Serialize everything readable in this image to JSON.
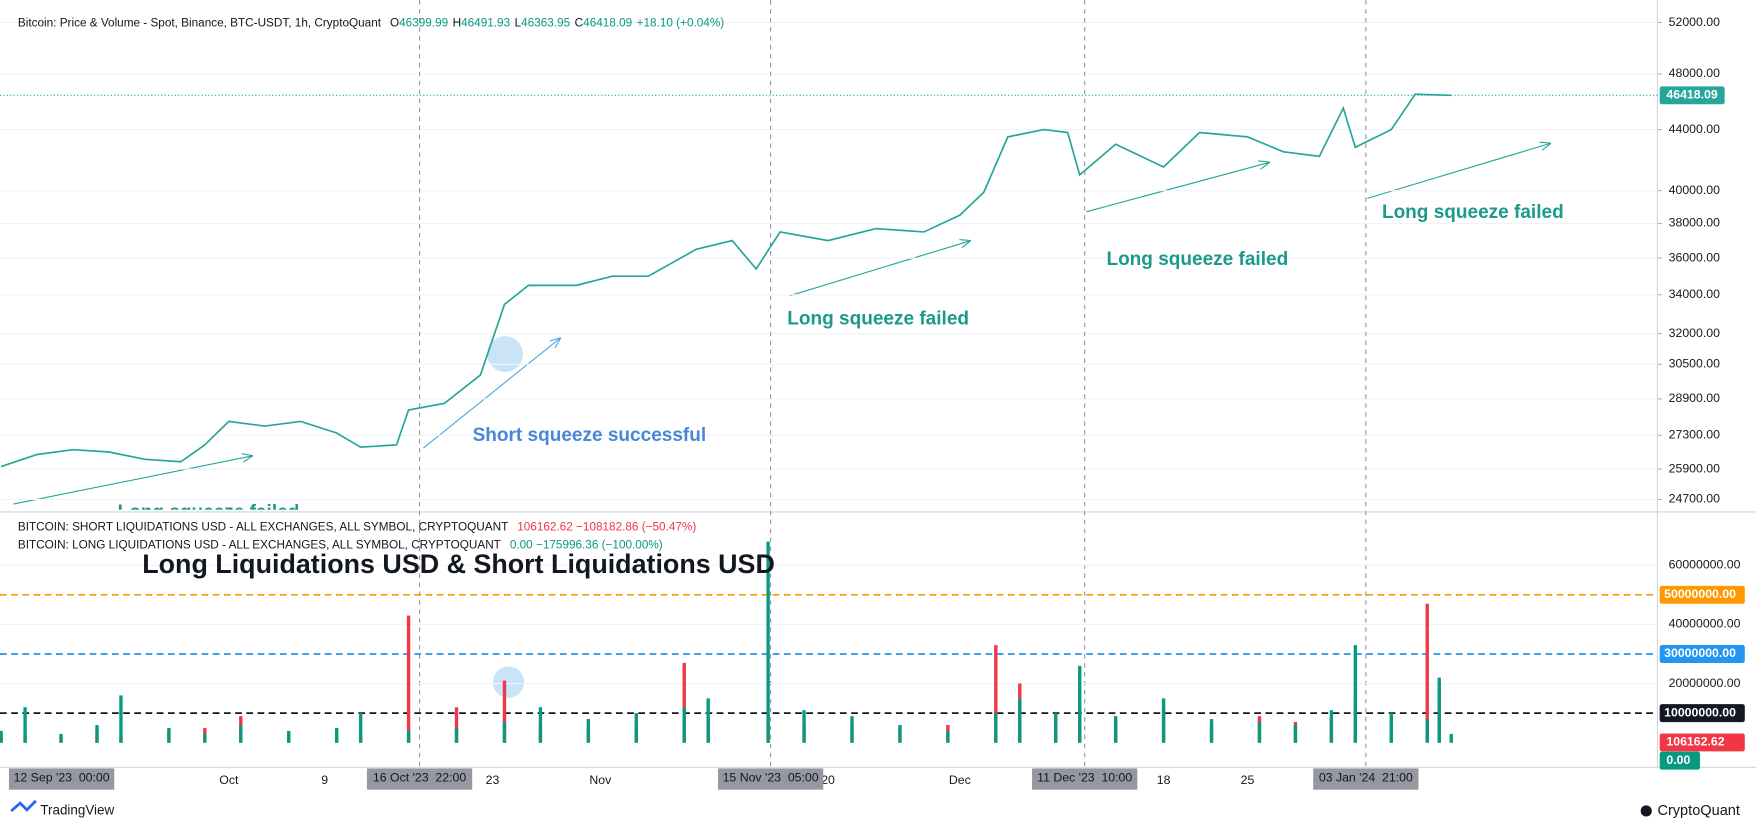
{
  "chart_data": [
    {
      "type": "line",
      "log": true,
      "title": "Bitcoin: Price & Volume - Spot, Binance, BTC-USDT, 1h, CryptoQuant",
      "ohlc": [
        {
          "key": "O",
          "value": "46399.99"
        },
        {
          "key": "H",
          "value": "46491.93"
        },
        {
          "key": "L",
          "value": "46363.95"
        },
        {
          "key": "C",
          "value": "46418.09"
        }
      ],
      "change": "+18.10 (+0.04%)",
      "x": [
        "2023-09-12",
        "2023-09-15",
        "2023-09-18",
        "2023-09-21",
        "2023-09-24",
        "2023-09-27",
        "2023-09-29",
        "2023-10-01",
        "2023-10-04",
        "2023-10-07",
        "2023-10-10",
        "2023-10-12",
        "2023-10-15",
        "2023-10-16",
        "2023-10-19",
        "2023-10-22",
        "2023-10-24",
        "2023-10-26",
        "2023-10-30",
        "2023-11-02",
        "2023-11-05",
        "2023-11-09",
        "2023-11-12",
        "2023-11-14",
        "2023-11-16",
        "2023-11-20",
        "2023-11-24",
        "2023-11-28",
        "2023-12-01",
        "2023-12-03",
        "2023-12-05",
        "2023-12-08",
        "2023-12-10",
        "2023-12-11",
        "2023-12-14",
        "2023-12-18",
        "2023-12-21",
        "2023-12-25",
        "2023-12-28",
        "2023-12-31",
        "2024-01-02",
        "2024-01-03",
        "2024-01-06",
        "2024-01-08",
        "2024-01-11"
      ],
      "values": [
        26000,
        26500,
        26700,
        26600,
        26300,
        26200,
        26900,
        27900,
        27700,
        27900,
        27400,
        26800,
        26900,
        28400,
        28700,
        30000,
        33500,
        34500,
        34500,
        35000,
        35000,
        36500,
        37000,
        35400,
        37500,
        37000,
        37700,
        37500,
        38500,
        39900,
        43500,
        44000,
        43800,
        41000,
        43000,
        41500,
        43800,
        43500,
        42500,
        42200,
        45500,
        42800,
        44000,
        46500,
        46418
      ],
      "color": "#26a69a",
      "last_price": 46418.09,
      "xlim": [
        "2023-09-12T00:00",
        "2024-01-28T05:00"
      ],
      "ylim": [
        24310,
        53850
      ],
      "yticks": [
        {
          "value": 52000,
          "label": "52000.00"
        },
        {
          "value": 48000,
          "label": "48000.00"
        },
        {
          "value": 44000,
          "label": "44000.00"
        },
        {
          "value": 40000,
          "label": "40000.00"
        },
        {
          "value": 38000,
          "label": "38000.00"
        },
        {
          "value": 36000,
          "label": "36000.00"
        },
        {
          "value": 34000,
          "label": "34000.00"
        },
        {
          "value": 32000,
          "label": "32000.00"
        },
        {
          "value": 30500,
          "label": "30500.00"
        },
        {
          "value": 28900,
          "label": "28900.00"
        },
        {
          "value": 27300,
          "label": "27300.00"
        },
        {
          "value": 25900,
          "label": "25900.00"
        },
        {
          "value": 24700,
          "label": "24700.00"
        }
      ],
      "annotations": [
        {
          "text": "Long squeeze failed",
          "color": "#1a9a8a"
        },
        {
          "text": "Short squeeze successful",
          "color": "#4a86d8"
        },
        {
          "text": "Long squeeze failed",
          "color": "#1a9a8a"
        },
        {
          "text": "Long squeeze failed",
          "color": "#1a9a8a"
        },
        {
          "text": "Long squeeze failed",
          "color": "#1a9a8a"
        }
      ]
    },
    {
      "type": "bar",
      "title": "Long Liquidations USD & Short Liquidations USD",
      "x": [
        "2023-09-12",
        "2023-09-14",
        "2023-09-17",
        "2023-09-20",
        "2023-09-22",
        "2023-09-26",
        "2023-09-29",
        "2023-10-02",
        "2023-10-06",
        "2023-10-10",
        "2023-10-12",
        "2023-10-16",
        "2023-10-20",
        "2023-10-24",
        "2023-10-27",
        "2023-10-31",
        "2023-11-04",
        "2023-11-08",
        "2023-11-10",
        "2023-11-15",
        "2023-11-18",
        "2023-11-22",
        "2023-11-26",
        "2023-11-30",
        "2023-12-04",
        "2023-12-06",
        "2023-12-09",
        "2023-12-11",
        "2023-12-14",
        "2023-12-18",
        "2023-12-22",
        "2023-12-26",
        "2023-12-29",
        "2024-01-01",
        "2024-01-03",
        "2024-01-06",
        "2024-01-09",
        "2024-01-10",
        "2024-01-11"
      ],
      "series": [
        {
          "name": "BITCOIN: SHORT LIQUIDATIONS USD - ALL EXCHANGES, ALL SYMBOL, CRYPTOQUANT",
          "legend_value": "106162.62  −108182.86 (−50.47%)",
          "color": "#f23645",
          "values": [
            2000000,
            3000000,
            2000000,
            3000000,
            2000000,
            4000000,
            5000000,
            9000000,
            3000000,
            3000000,
            2000000,
            43000000,
            12000000,
            21000000,
            6000000,
            5000000,
            5000000,
            27000000,
            8000000,
            10000000,
            6000000,
            6000000,
            5000000,
            6000000,
            33000000,
            20000000,
            8000000,
            12000000,
            8000000,
            12000000,
            6000000,
            9000000,
            7000000,
            8000000,
            15000000,
            8000000,
            47000000,
            20000000,
            1000000
          ]
        },
        {
          "name": "BITCOIN: LONG LIQUIDATIONS USD - ALL EXCHANGES, ALL SYMBOL, CRYPTOQUANT",
          "legend_value": "0.00  −175996.36 (−100.00%)",
          "color": "#089981",
          "values": [
            4000000,
            12000000,
            3000000,
            6000000,
            16000000,
            5000000,
            3000000,
            6000000,
            4000000,
            5000000,
            10000000,
            4000000,
            5000000,
            7000000,
            12000000,
            8000000,
            10000000,
            12000000,
            15000000,
            68000000,
            11000000,
            9000000,
            6000000,
            4000000,
            10000000,
            15000000,
            10000000,
            26000000,
            9000000,
            15000000,
            8000000,
            7000000,
            6000000,
            11000000,
            33000000,
            10000000,
            8000000,
            22000000,
            3000000
          ]
        }
      ],
      "ylim": [
        -8300000,
        76900000
      ],
      "yticks": [
        {
          "value": 60000000,
          "label": "60000000.00"
        },
        {
          "value": 40000000,
          "label": "40000000.00"
        },
        {
          "value": 20000000,
          "label": "20000000.00"
        }
      ],
      "levels": [
        {
          "value": 50000000,
          "label": "50000000.00",
          "color": "#ff9800"
        },
        {
          "value": 30000000,
          "label": "30000000.00",
          "color": "#2196f3"
        },
        {
          "value": 10000000,
          "label": "10000000.00",
          "color": "#131722"
        }
      ],
      "last_badges": [
        {
          "value": 106162.62,
          "label": "106162.62",
          "color": "#f23645"
        },
        {
          "value": 0,
          "label": "0.00",
          "color": "#089981"
        }
      ],
      "xticks": [
        {
          "value": "2023-10-01",
          "label": "Oct"
        },
        {
          "value": "2023-10-09",
          "label": "9"
        },
        {
          "value": "2023-10-23",
          "label": "23"
        },
        {
          "value": "2023-11-01",
          "label": "Nov"
        },
        {
          "value": "2023-11-20",
          "label": "20"
        },
        {
          "value": "2023-12-01",
          "label": "Dec"
        },
        {
          "value": "2023-12-18",
          "label": "18"
        },
        {
          "value": "2023-12-25",
          "label": "25"
        }
      ],
      "x_start": {
        "value": "2023-09-12T00:00",
        "label": "12 Sep '23  00:00"
      },
      "markers": [
        {
          "value": "2023-10-16T22:00",
          "label": "16 Oct '23  22:00"
        },
        {
          "value": "2023-11-15T05:00",
          "label": "15 Nov '23  05:00"
        },
        {
          "value": "2023-12-11T10:00",
          "label": "11 Dec '23  10:00"
        },
        {
          "value": "2024-01-03T21:00",
          "label": "03 Jan '24  21:00"
        }
      ]
    }
  ],
  "footer": {
    "left": "TradingView",
    "right": "CryptoQuant"
  }
}
